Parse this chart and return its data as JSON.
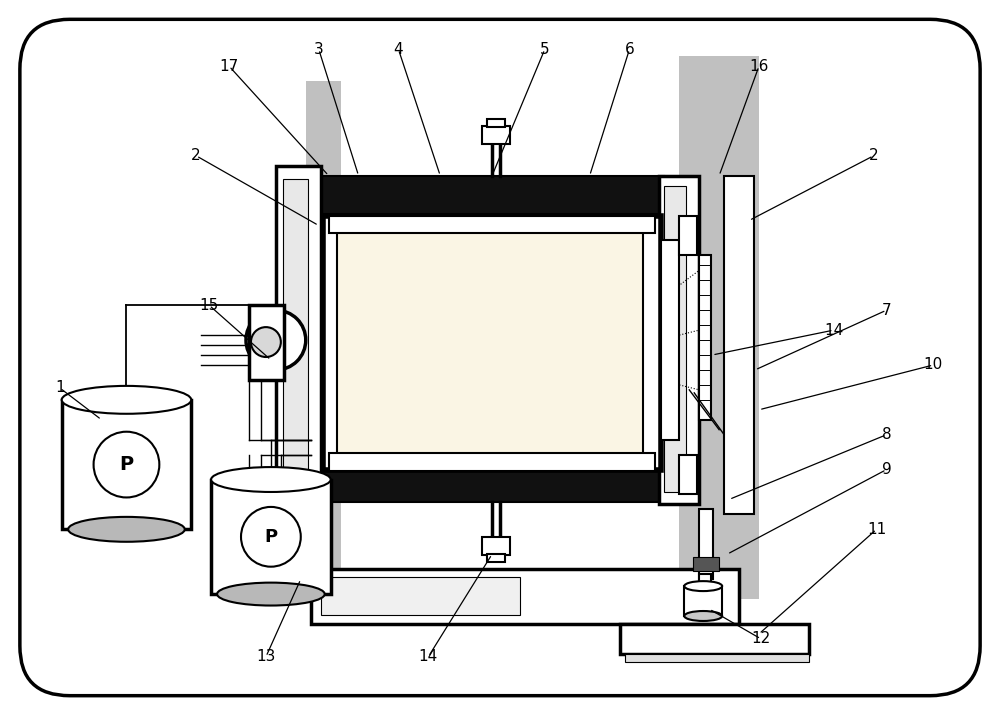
{
  "bg_color": "#ffffff",
  "border_color": "#000000",
  "gray_color": "#c0c0c0",
  "light_yellow": "#faf5e4",
  "dark_color": "#111111",
  "figsize": [
    10.0,
    7.15
  ],
  "dpi": 100
}
